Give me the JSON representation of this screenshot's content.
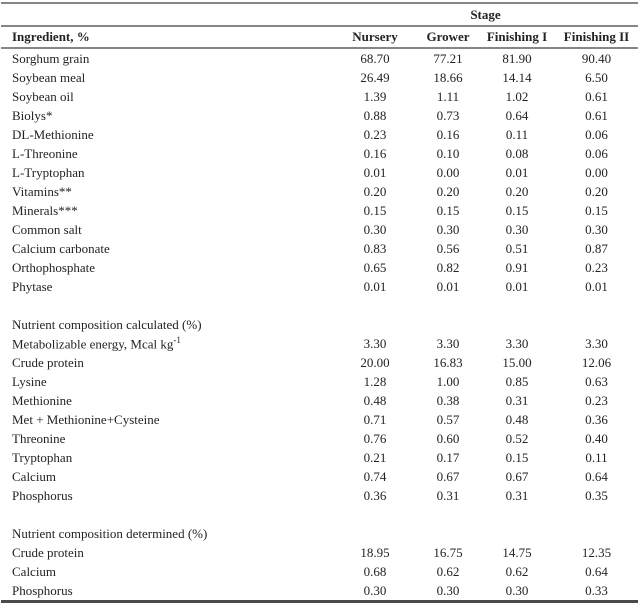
{
  "table": {
    "stage_header": "Stage",
    "columns": [
      "Ingredient, %",
      "Nursery",
      "Grower",
      "Finishing I",
      "Finishing II"
    ],
    "rows": [
      {
        "type": "data",
        "label": "Sorghum grain",
        "values": [
          "68.70",
          "77.21",
          "81.90",
          "90.40"
        ]
      },
      {
        "type": "data",
        "label": "Soybean meal",
        "values": [
          "26.49",
          "18.66",
          "14.14",
          "6.50"
        ]
      },
      {
        "type": "data",
        "label": "Soybean oil",
        "values": [
          "1.39",
          "1.11",
          "1.02",
          "0.61"
        ]
      },
      {
        "type": "data",
        "label": "Biolys*",
        "values": [
          "0.88",
          "0.73",
          "0.64",
          "0.61"
        ]
      },
      {
        "type": "data",
        "label": "DL-Methionine",
        "values": [
          "0.23",
          "0.16",
          "0.11",
          "0.06"
        ]
      },
      {
        "type": "data",
        "label": "L-Threonine",
        "values": [
          "0.16",
          "0.10",
          "0.08",
          "0.06"
        ]
      },
      {
        "type": "data",
        "label": "L-Tryptophan",
        "values": [
          "0.01",
          "0.00",
          "0.01",
          "0.00"
        ]
      },
      {
        "type": "data",
        "label": "Vitamins**",
        "values": [
          "0.20",
          "0.20",
          "0.20",
          "0.20"
        ]
      },
      {
        "type": "data",
        "label": "Minerals***",
        "values": [
          "0.15",
          "0.15",
          "0.15",
          "0.15"
        ]
      },
      {
        "type": "data",
        "label": "Common salt",
        "values": [
          "0.30",
          "0.30",
          "0.30",
          "0.30"
        ]
      },
      {
        "type": "data",
        "label": "Calcium carbonate",
        "values": [
          "0.83",
          "0.56",
          "0.51",
          "0.87"
        ]
      },
      {
        "type": "data",
        "label": "Orthophosphate",
        "values": [
          "0.65",
          "0.82",
          "0.91",
          "0.23"
        ]
      },
      {
        "type": "data",
        "label": "Phytase",
        "values": [
          "0.01",
          "0.01",
          "0.01",
          "0.01"
        ]
      },
      {
        "type": "spacer"
      },
      {
        "type": "section",
        "label": "Nutrient composition calculated (%)"
      },
      {
        "type": "data",
        "label": "Metabolizable energy, Mcal kg",
        "sup": "-1",
        "values": [
          "3.30",
          "3.30",
          "3.30",
          "3.30"
        ]
      },
      {
        "type": "data",
        "label": "Crude protein",
        "values": [
          "20.00",
          "16.83",
          "15.00",
          "12.06"
        ]
      },
      {
        "type": "data",
        "label": "Lysine",
        "values": [
          "1.28",
          "1.00",
          "0.85",
          "0.63"
        ]
      },
      {
        "type": "data",
        "label": "Methionine",
        "values": [
          "0.48",
          "0.38",
          "0.31",
          "0.23"
        ]
      },
      {
        "type": "data",
        "label": "Met + Methionine+Cysteine",
        "values": [
          "0.71",
          "0.57",
          "0.48",
          "0.36"
        ]
      },
      {
        "type": "data",
        "label": "Threonine",
        "values": [
          "0.76",
          "0.60",
          "0.52",
          "0.40"
        ]
      },
      {
        "type": "data",
        "label": "Tryptophan",
        "values": [
          "0.21",
          "0.17",
          "0.15",
          "0.11"
        ]
      },
      {
        "type": "data",
        "label": "Calcium",
        "values": [
          "0.74",
          "0.67",
          "0.67",
          "0.64"
        ]
      },
      {
        "type": "data",
        "label": "Phosphorus",
        "values": [
          "0.36",
          "0.31",
          "0.31",
          "0.35"
        ]
      },
      {
        "type": "spacer"
      },
      {
        "type": "section",
        "label": "Nutrient composition determined (%)"
      },
      {
        "type": "data",
        "label": "Crude protein",
        "values": [
          "18.95",
          "16.75",
          "14.75",
          "12.35"
        ]
      },
      {
        "type": "data",
        "label": "Calcium",
        "values": [
          "0.68",
          "0.62",
          "0.62",
          "0.64"
        ]
      },
      {
        "type": "data",
        "label": "Phosphorus",
        "values": [
          "0.30",
          "0.30",
          "0.30",
          "0.33"
        ]
      }
    ]
  }
}
